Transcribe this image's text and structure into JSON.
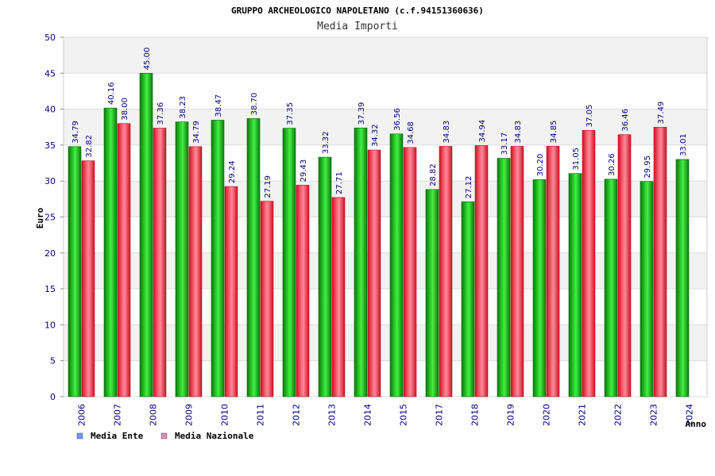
{
  "chart_data": {
    "type": "bar",
    "title": "GRUPPO ARCHEOLOGICO NAPOLETANO (c.f.94151360636)",
    "subtitle": "Media Importi",
    "xlabel": "Anno",
    "ylabel": "Euro",
    "ylim": [
      0,
      50
    ],
    "yticks": [
      "0",
      "5",
      "10",
      "15",
      "20",
      "25",
      "30",
      "35",
      "40",
      "45",
      "50"
    ],
    "grid": true,
    "legend_position": "bottom-left",
    "categories": [
      "2006",
      "2007",
      "2008",
      "2009",
      "2010",
      "2011",
      "2012",
      "2013",
      "2014",
      "2015",
      "2017",
      "2018",
      "2019",
      "2020",
      "2021",
      "2022",
      "2023",
      "2024"
    ],
    "series": [
      {
        "name": "Media Ente",
        "legend_color": "#6699ff",
        "bar_color": "#22bb22",
        "values": [
          34.79,
          40.16,
          45.0,
          38.23,
          38.47,
          38.7,
          37.35,
          33.32,
          37.39,
          36.56,
          28.82,
          27.12,
          33.17,
          30.2,
          31.05,
          30.26,
          29.95,
          33.01
        ],
        "labels": [
          "34.79",
          "40.16",
          "45.00",
          "38.23",
          "38.47",
          "38.70",
          "37.35",
          "33.32",
          "37.39",
          "36.56",
          "28.82",
          "27.12",
          "33.17",
          "30.20",
          "31.05",
          "30.26",
          "29.95",
          "33.01"
        ]
      },
      {
        "name": "Media Nazionale",
        "legend_color": "#dd88bb",
        "bar_color": "#ee3344",
        "values": [
          32.82,
          38.0,
          37.36,
          34.79,
          29.24,
          27.19,
          29.43,
          27.71,
          34.32,
          34.68,
          34.83,
          34.94,
          34.83,
          34.85,
          37.05,
          36.46,
          37.49,
          null
        ],
        "labels": [
          "32.82",
          "38.00",
          "37.36",
          "34.79",
          "29.24",
          "27.19",
          "29.43",
          "27.71",
          "34.32",
          "34.68",
          "34.83",
          "34.94",
          "34.83",
          "34.85",
          "37.05",
          "36.46",
          "37.49",
          null
        ]
      }
    ]
  }
}
